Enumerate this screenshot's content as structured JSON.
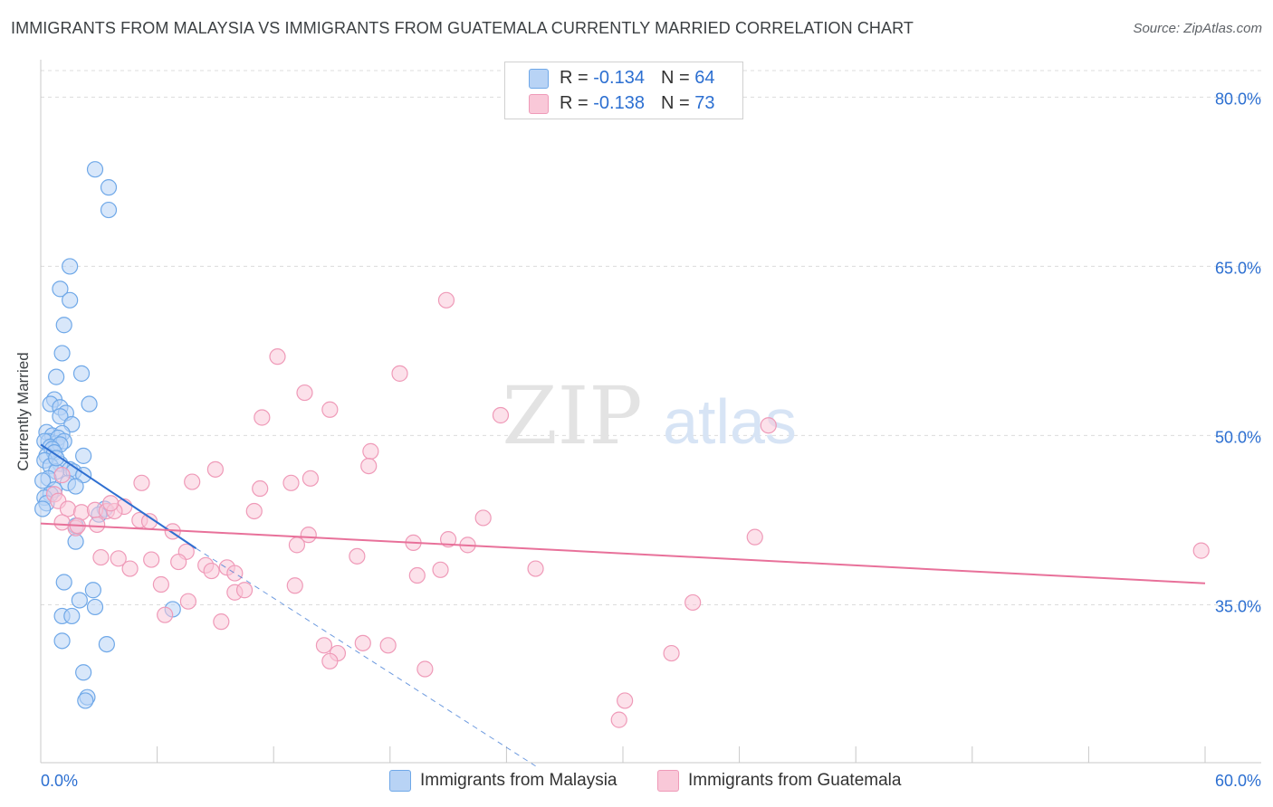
{
  "chart_data": {
    "type": "scatter",
    "title": "IMMIGRANTS FROM MALAYSIA VS IMMIGRANTS FROM GUATEMALA CURRENTLY MARRIED CORRELATION CHART",
    "source": "Source: ZipAtlas.com",
    "xlabel": "",
    "ylabel": "Currently Married",
    "xlim": [
      0,
      60
    ],
    "ylim": [
      21,
      83
    ],
    "x_tick_labels": [
      "0.0%",
      "60.0%"
    ],
    "y_ticks": [
      35,
      50,
      65,
      80
    ],
    "y_tick_labels": [
      "35.0%",
      "50.0%",
      "65.0%",
      "80.0%"
    ],
    "watermark": {
      "zip": "ZIP",
      "atlas": "atlas"
    },
    "legend": {
      "rows": [
        {
          "r_label": "R = ",
          "r_value": "-0.134",
          "n_label": "N = ",
          "n_value": "64"
        },
        {
          "r_label": "R = ",
          "r_value": "-0.138",
          "n_label": "N = ",
          "n_value": "73"
        }
      ]
    },
    "series": [
      {
        "name": "Immigrants from Malaysia",
        "color": "#6fa8e8",
        "fill": "#b8d3f5",
        "line_color": "#2f6fd1",
        "trend": {
          "x0": 0.0,
          "y0": 49.2,
          "x1": 8.0,
          "y1": 40.0,
          "dash_to_x": 25.5,
          "dash_to_y": 20.7
        },
        "points": [
          [
            2.8,
            73.6
          ],
          [
            3.5,
            72.0
          ],
          [
            3.5,
            70.0
          ],
          [
            1.5,
            65.0
          ],
          [
            1.0,
            63.0
          ],
          [
            1.5,
            62.0
          ],
          [
            1.2,
            59.8
          ],
          [
            1.1,
            57.3
          ],
          [
            0.8,
            55.2
          ],
          [
            2.1,
            55.5
          ],
          [
            0.7,
            53.2
          ],
          [
            0.5,
            52.8
          ],
          [
            1.0,
            52.5
          ],
          [
            1.3,
            52.0
          ],
          [
            2.5,
            52.8
          ],
          [
            1.0,
            51.7
          ],
          [
            1.6,
            51.0
          ],
          [
            0.3,
            50.3
          ],
          [
            0.6,
            50.0
          ],
          [
            1.1,
            50.2
          ],
          [
            0.4,
            49.5
          ],
          [
            0.8,
            49.3
          ],
          [
            0.2,
            49.5
          ],
          [
            0.9,
            49.8
          ],
          [
            1.2,
            49.5
          ],
          [
            0.5,
            49.0
          ],
          [
            1.0,
            49.2
          ],
          [
            0.6,
            48.8
          ],
          [
            0.3,
            48.2
          ],
          [
            0.7,
            48.5
          ],
          [
            2.2,
            48.2
          ],
          [
            0.2,
            47.8
          ],
          [
            1.0,
            47.5
          ],
          [
            0.5,
            47.3
          ],
          [
            1.5,
            47.0
          ],
          [
            0.8,
            46.8
          ],
          [
            1.7,
            46.8
          ],
          [
            2.2,
            46.5
          ],
          [
            0.4,
            46.2
          ],
          [
            0.1,
            46.0
          ],
          [
            1.4,
            45.8
          ],
          [
            1.8,
            45.5
          ],
          [
            0.7,
            45.2
          ],
          [
            0.5,
            44.8
          ],
          [
            0.2,
            44.5
          ],
          [
            0.3,
            44.0
          ],
          [
            0.1,
            43.5
          ],
          [
            3.3,
            43.5
          ],
          [
            3.0,
            43.0
          ],
          [
            1.8,
            42.0
          ],
          [
            1.8,
            40.6
          ],
          [
            1.2,
            37.0
          ],
          [
            2.7,
            36.3
          ],
          [
            2.0,
            35.4
          ],
          [
            2.8,
            34.8
          ],
          [
            6.8,
            34.6
          ],
          [
            1.1,
            34.0
          ],
          [
            1.6,
            34.0
          ],
          [
            1.1,
            31.8
          ],
          [
            3.4,
            31.5
          ],
          [
            2.2,
            29.0
          ],
          [
            2.4,
            26.8
          ],
          [
            2.3,
            26.5
          ],
          [
            0.8,
            48.0
          ]
        ]
      },
      {
        "name": "Immigrants from Guatemala",
        "color": "#ef9ab8",
        "fill": "#f9c8d8",
        "line_color": "#e8719a",
        "trend": {
          "x0": 0.0,
          "y0": 42.2,
          "x1": 60.0,
          "y1": 36.9
        },
        "points": [
          [
            20.9,
            62.0
          ],
          [
            12.2,
            57.0
          ],
          [
            18.5,
            55.5
          ],
          [
            13.6,
            53.8
          ],
          [
            14.9,
            52.3
          ],
          [
            11.4,
            51.6
          ],
          [
            23.7,
            51.8
          ],
          [
            37.5,
            50.9
          ],
          [
            17.0,
            48.6
          ],
          [
            16.9,
            47.3
          ],
          [
            9.0,
            47.0
          ],
          [
            13.9,
            46.2
          ],
          [
            5.2,
            45.8
          ],
          [
            7.8,
            45.9
          ],
          [
            11.3,
            45.3
          ],
          [
            12.9,
            45.8
          ],
          [
            1.1,
            46.5
          ],
          [
            0.7,
            44.8
          ],
          [
            0.9,
            44.2
          ],
          [
            4.3,
            43.7
          ],
          [
            1.4,
            43.5
          ],
          [
            2.1,
            43.2
          ],
          [
            2.8,
            43.4
          ],
          [
            3.4,
            43.3
          ],
          [
            3.8,
            43.3
          ],
          [
            11.0,
            43.3
          ],
          [
            22.8,
            42.7
          ],
          [
            5.1,
            42.5
          ],
          [
            5.6,
            42.4
          ],
          [
            6.8,
            41.5
          ],
          [
            1.8,
            41.8
          ],
          [
            2.9,
            42.1
          ],
          [
            1.9,
            42.0
          ],
          [
            1.1,
            42.3
          ],
          [
            13.8,
            41.2
          ],
          [
            13.2,
            40.3
          ],
          [
            19.2,
            40.5
          ],
          [
            21.0,
            40.8
          ],
          [
            22.0,
            40.3
          ],
          [
            36.8,
            41.0
          ],
          [
            59.8,
            39.8
          ],
          [
            3.1,
            39.2
          ],
          [
            4.0,
            39.1
          ],
          [
            5.7,
            39.0
          ],
          [
            7.5,
            39.7
          ],
          [
            7.1,
            38.8
          ],
          [
            8.5,
            38.5
          ],
          [
            4.6,
            38.2
          ],
          [
            9.6,
            38.3
          ],
          [
            10.0,
            37.8
          ],
          [
            8.8,
            38.0
          ],
          [
            16.3,
            39.3
          ],
          [
            19.4,
            37.6
          ],
          [
            20.6,
            38.1
          ],
          [
            25.5,
            38.2
          ],
          [
            6.2,
            36.8
          ],
          [
            13.1,
            36.7
          ],
          [
            10.0,
            36.1
          ],
          [
            10.5,
            36.3
          ],
          [
            7.6,
            35.3
          ],
          [
            33.6,
            35.2
          ],
          [
            6.4,
            34.1
          ],
          [
            9.3,
            33.5
          ],
          [
            14.6,
            31.4
          ],
          [
            16.6,
            31.6
          ],
          [
            17.9,
            31.4
          ],
          [
            15.3,
            30.7
          ],
          [
            14.9,
            30.0
          ],
          [
            32.5,
            30.7
          ],
          [
            19.8,
            29.3
          ],
          [
            30.1,
            26.5
          ],
          [
            29.8,
            24.8
          ],
          [
            3.6,
            44.0
          ]
        ]
      }
    ]
  }
}
